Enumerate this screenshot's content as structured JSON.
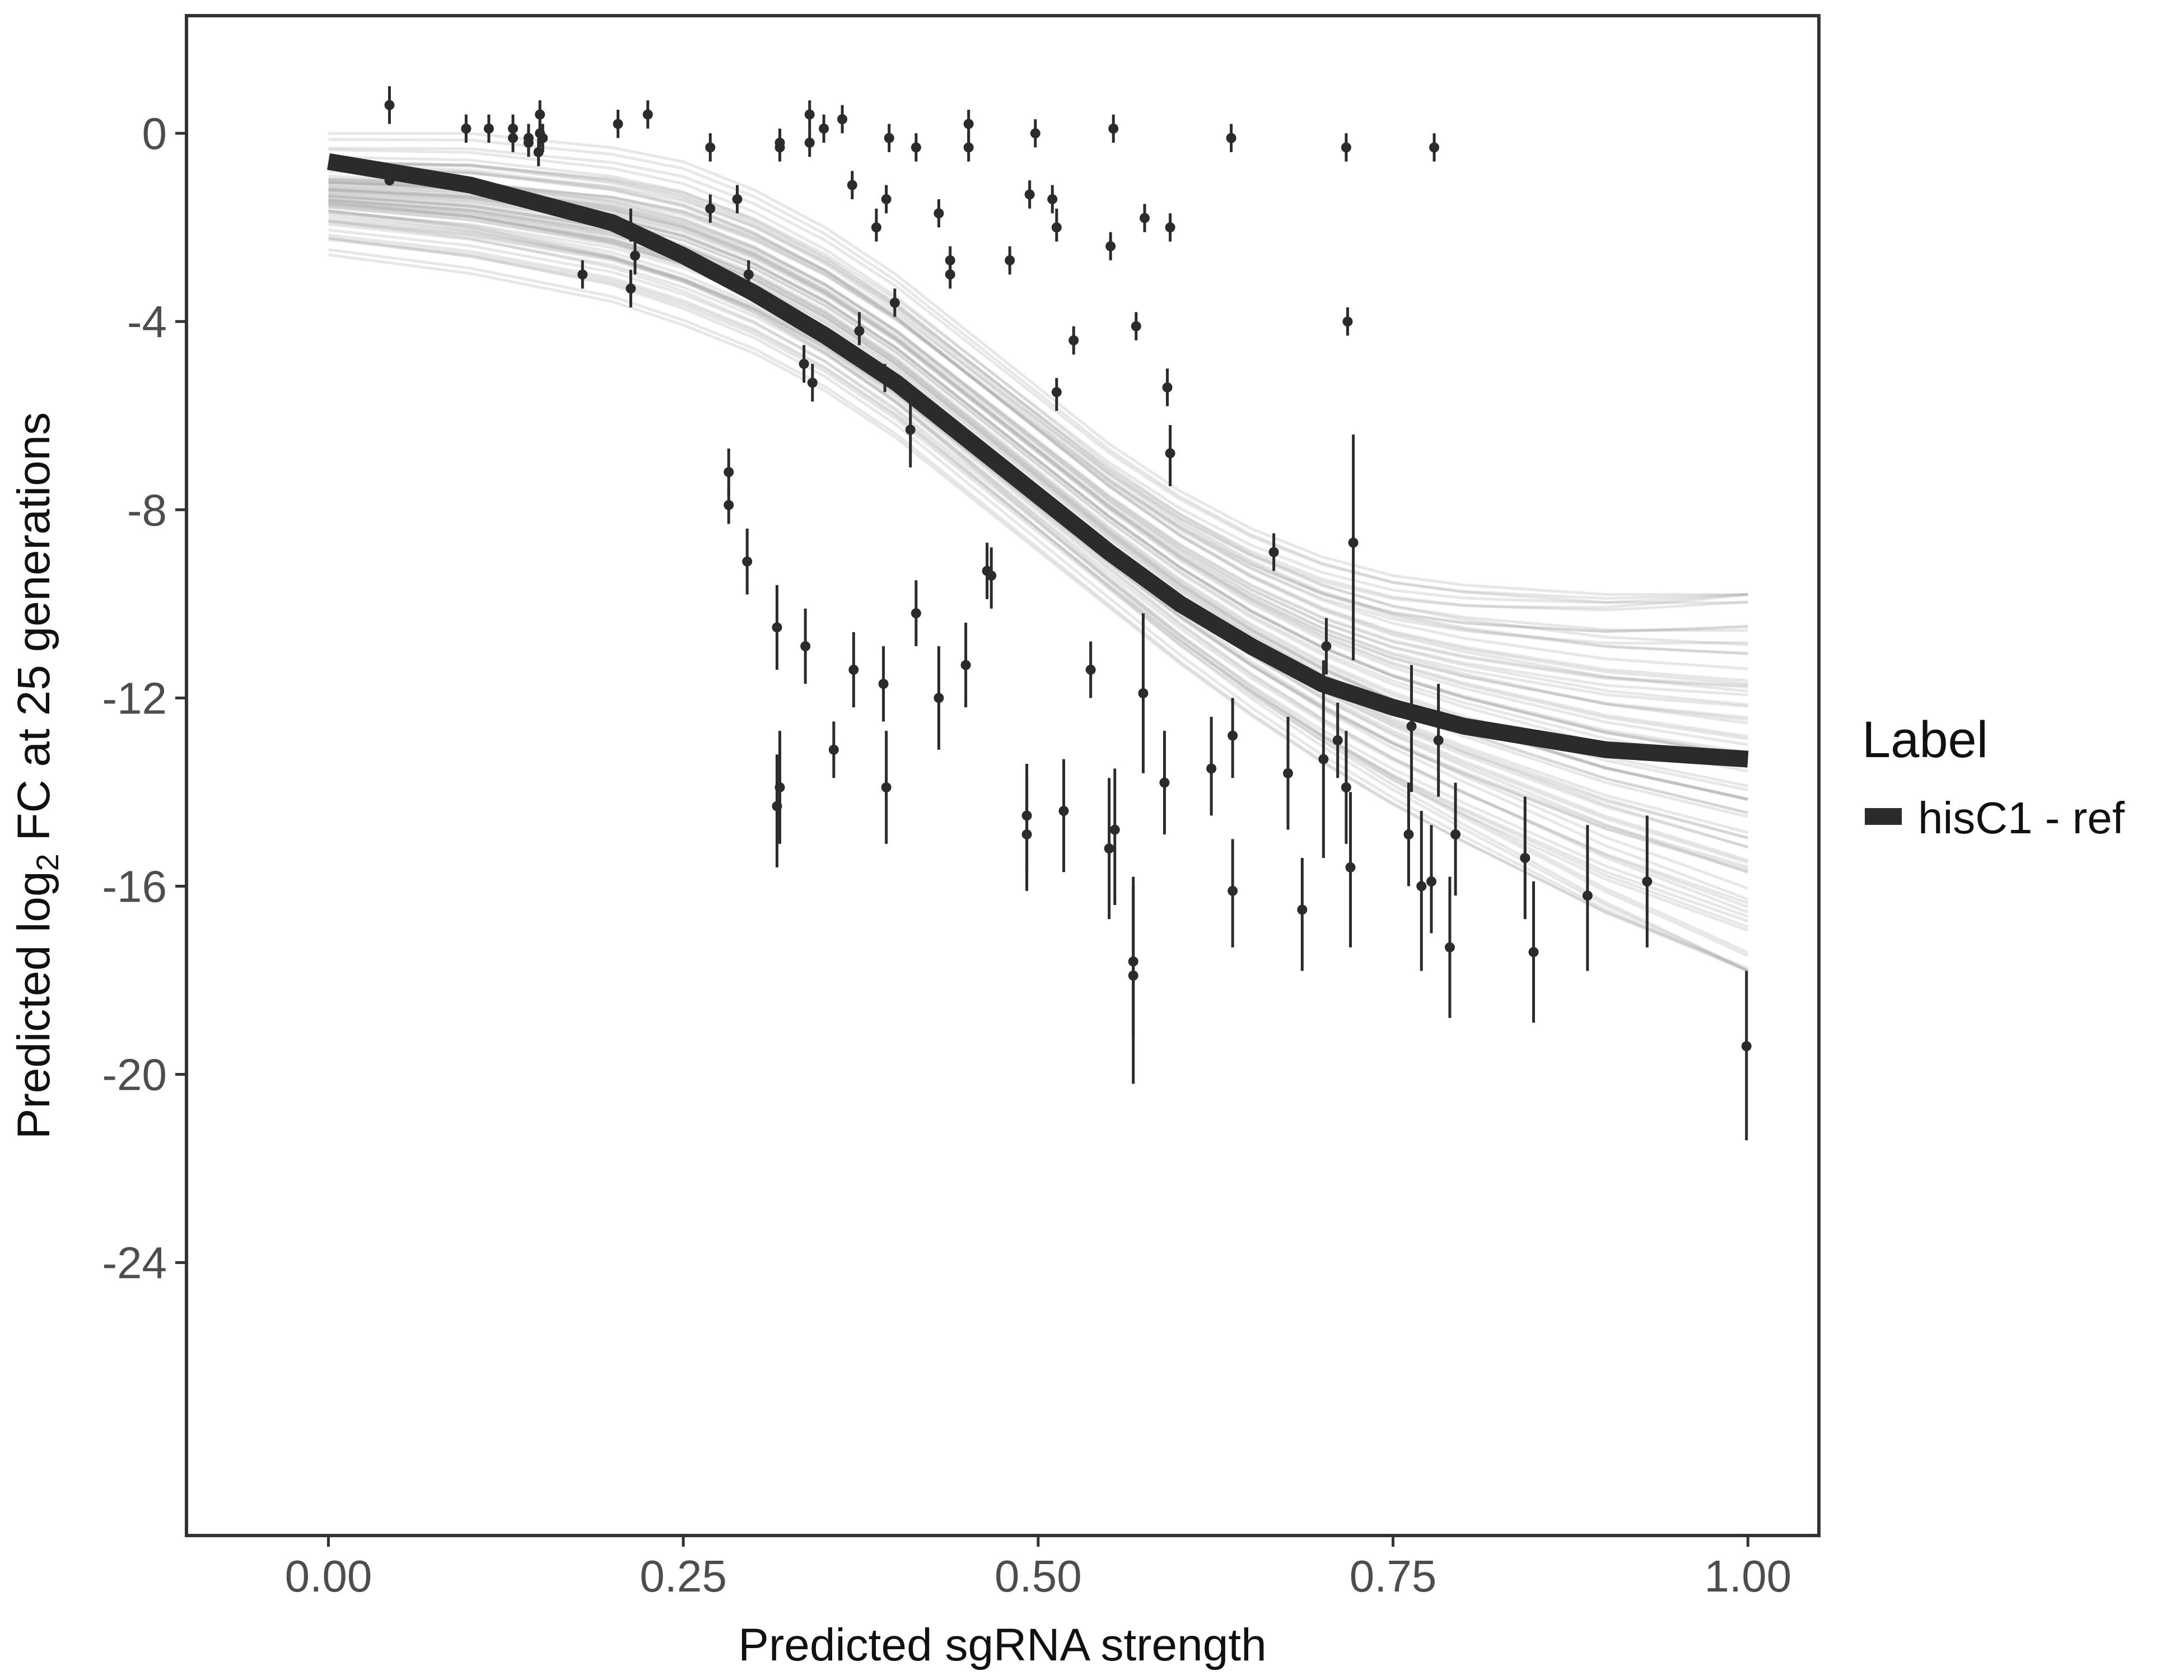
{
  "chart_data": {
    "type": "scatter",
    "title": "",
    "xlabel": "Predicted sgRNA strength",
    "ylabel_parts": {
      "pre": "Predicted  log",
      "sub": "2",
      "post": " FC at 25 generations"
    },
    "xlim": [
      -0.1,
      1.05
    ],
    "ylim": [
      -29.8,
      2.5
    ],
    "x_ticks": [
      0,
      0.25,
      0.5,
      0.75,
      1
    ],
    "x_tick_labels": [
      "0.00",
      "0.25",
      "0.50",
      "0.75",
      "1.00"
    ],
    "y_ticks": [
      0,
      -4,
      -8,
      -12,
      -16,
      -20,
      -24
    ],
    "y_tick_labels": [
      "0",
      "-4",
      "-8",
      "-12",
      "-16",
      "-20",
      "-24"
    ],
    "grid": false,
    "legend": {
      "title": "Label",
      "position": "right",
      "entries": [
        {
          "label": "hisC1 - ref",
          "color": "#2b2b2b"
        }
      ]
    },
    "colors": {
      "fit_line": "#2b2b2b",
      "posterior_draws": "#a8a8a8",
      "points": "#2b2b2b",
      "frame": "#333333",
      "tick_text": "#4d4d4d"
    },
    "fit_curve": {
      "description": "mean posterior logistic fit",
      "x": [
        0,
        0.1,
        0.2,
        0.25,
        0.3,
        0.35,
        0.4,
        0.45,
        0.5,
        0.55,
        0.6,
        0.65,
        0.7,
        0.75,
        0.8,
        0.9,
        1.0
      ],
      "y": [
        -0.6,
        -1.1,
        -1.9,
        -2.6,
        -3.4,
        -4.3,
        -5.3,
        -6.5,
        -7.7,
        -8.9,
        -10.0,
        -10.9,
        -11.7,
        -12.2,
        -12.6,
        -13.1,
        -13.3
      ]
    },
    "posterior_band": {
      "x": [
        0,
        0.1,
        0.2,
        0.25,
        0.3,
        0.35,
        0.4,
        0.45,
        0.5,
        0.55,
        0.6,
        0.65,
        0.7,
        0.75,
        0.8,
        0.9,
        1.0
      ],
      "lower": [
        -2.6,
        -3.0,
        -3.6,
        -4.1,
        -4.7,
        -5.5,
        -6.5,
        -7.7,
        -8.9,
        -10.1,
        -11.3,
        -12.4,
        -13.4,
        -14.3,
        -15.1,
        -16.6,
        -17.8
      ],
      "upper": [
        0.0,
        0.0,
        -0.3,
        -0.6,
        -1.2,
        -2.0,
        -3.0,
        -4.2,
        -5.4,
        -6.6,
        -7.6,
        -8.4,
        -9.0,
        -9.4,
        -9.6,
        -9.8,
        -9.8
      ]
    },
    "series": [
      {
        "name": "observed",
        "points": [
          {
            "x": 0.043,
            "y": 0.6,
            "lo": 0.2,
            "hi": 1.0
          },
          {
            "x": 0.043,
            "y": -1.0,
            "lo": -1.1,
            "hi": -0.9
          },
          {
            "x": 0.097,
            "y": 0.1,
            "lo": -0.2,
            "hi": 0.4
          },
          {
            "x": 0.113,
            "y": 0.1,
            "lo": -0.2,
            "hi": 0.4
          },
          {
            "x": 0.13,
            "y": 0.1,
            "lo": -0.2,
            "hi": 0.4
          },
          {
            "x": 0.13,
            "y": -0.1,
            "lo": -0.4,
            "hi": 0.2
          },
          {
            "x": 0.141,
            "y": -0.1,
            "lo": -0.4,
            "hi": 0.2
          },
          {
            "x": 0.141,
            "y": -0.2,
            "lo": -0.5,
            "hi": 0.1
          },
          {
            "x": 0.149,
            "y": 0.4,
            "lo": 0.0,
            "hi": 0.7
          },
          {
            "x": 0.149,
            "y": 0.0,
            "lo": -0.3,
            "hi": 0.3
          },
          {
            "x": 0.151,
            "y": -0.1,
            "lo": -0.4,
            "hi": 0.2
          },
          {
            "x": 0.148,
            "y": -0.4,
            "lo": -0.7,
            "hi": -0.1
          },
          {
            "x": 0.179,
            "y": -3.0,
            "lo": -3.3,
            "hi": -2.7
          },
          {
            "x": 0.204,
            "y": 0.2,
            "lo": -0.1,
            "hi": 0.5
          },
          {
            "x": 0.213,
            "y": -2.0,
            "lo": -2.3,
            "hi": -1.6
          },
          {
            "x": 0.213,
            "y": -3.3,
            "lo": -3.7,
            "hi": -2.9
          },
          {
            "x": 0.216,
            "y": -2.6,
            "lo": -3.0,
            "hi": -2.2
          },
          {
            "x": 0.225,
            "y": 0.4,
            "lo": 0.1,
            "hi": 0.7
          },
          {
            "x": 0.269,
            "y": -0.3,
            "lo": -0.6,
            "hi": 0.0
          },
          {
            "x": 0.269,
            "y": -1.6,
            "lo": -1.9,
            "hi": -1.3
          },
          {
            "x": 0.282,
            "y": -7.2,
            "lo": -7.7,
            "hi": -6.7
          },
          {
            "x": 0.282,
            "y": -7.9,
            "lo": -8.3,
            "hi": -7.5
          },
          {
            "x": 0.288,
            "y": -1.4,
            "lo": -1.7,
            "hi": -1.1
          },
          {
            "x": 0.295,
            "y": -9.1,
            "lo": -9.8,
            "hi": -8.4
          },
          {
            "x": 0.296,
            "y": -3.0,
            "lo": -3.3,
            "hi": -2.7
          },
          {
            "x": 0.316,
            "y": -10.5,
            "lo": -11.4,
            "hi": -9.6
          },
          {
            "x": 0.316,
            "y": -14.3,
            "lo": -15.6,
            "hi": -13.2
          },
          {
            "x": 0.318,
            "y": -13.9,
            "lo": -15.1,
            "hi": -12.7
          },
          {
            "x": 0.318,
            "y": -0.2,
            "lo": -0.5,
            "hi": 0.1
          },
          {
            "x": 0.318,
            "y": -0.3,
            "lo": -0.6,
            "hi": 0.0
          },
          {
            "x": 0.335,
            "y": -4.9,
            "lo": -5.3,
            "hi": -4.5
          },
          {
            "x": 0.336,
            "y": -10.9,
            "lo": -11.7,
            "hi": -10.1
          },
          {
            "x": 0.339,
            "y": 0.4,
            "lo": 0.1,
            "hi": 0.7
          },
          {
            "x": 0.339,
            "y": -0.2,
            "lo": -0.5,
            "hi": 0.1
          },
          {
            "x": 0.341,
            "y": -5.3,
            "lo": -5.7,
            "hi": -4.9
          },
          {
            "x": 0.349,
            "y": 0.1,
            "lo": -0.2,
            "hi": 0.4
          },
          {
            "x": 0.356,
            "y": -13.1,
            "lo": -13.7,
            "hi": -12.5
          },
          {
            "x": 0.362,
            "y": 0.3,
            "lo": 0.0,
            "hi": 0.6
          },
          {
            "x": 0.369,
            "y": -1.1,
            "lo": -1.4,
            "hi": -0.8
          },
          {
            "x": 0.37,
            "y": -11.4,
            "lo": -12.2,
            "hi": -10.6
          },
          {
            "x": 0.374,
            "y": -4.2,
            "lo": -4.5,
            "hi": -3.8
          },
          {
            "x": 0.386,
            "y": -2.0,
            "lo": -2.3,
            "hi": -1.6
          },
          {
            "x": 0.391,
            "y": -11.7,
            "lo": -12.5,
            "hi": -10.9
          },
          {
            "x": 0.392,
            "y": -5.2,
            "lo": -5.5,
            "hi": -4.9
          },
          {
            "x": 0.393,
            "y": -13.9,
            "lo": -15.1,
            "hi": -12.7
          },
          {
            "x": 0.393,
            "y": -1.4,
            "lo": -1.7,
            "hi": -1.1
          },
          {
            "x": 0.395,
            "y": -0.1,
            "lo": -0.4,
            "hi": 0.2
          },
          {
            "x": 0.399,
            "y": -3.6,
            "lo": -3.9,
            "hi": -3.3
          },
          {
            "x": 0.41,
            "y": -6.3,
            "lo": -7.1,
            "hi": -5.6
          },
          {
            "x": 0.414,
            "y": -0.3,
            "lo": -0.6,
            "hi": 0.0
          },
          {
            "x": 0.414,
            "y": -10.2,
            "lo": -10.9,
            "hi": -9.5
          },
          {
            "x": 0.43,
            "y": -12.0,
            "lo": -13.1,
            "hi": -10.9
          },
          {
            "x": 0.43,
            "y": -1.7,
            "lo": -2.0,
            "hi": -1.4
          },
          {
            "x": 0.438,
            "y": -2.7,
            "lo": -3.0,
            "hi": -2.4
          },
          {
            "x": 0.438,
            "y": -3.0,
            "lo": -3.3,
            "hi": -2.7
          },
          {
            "x": 0.449,
            "y": -11.3,
            "lo": -12.2,
            "hi": -10.4
          },
          {
            "x": 0.451,
            "y": 0.2,
            "lo": -0.1,
            "hi": 0.5
          },
          {
            "x": 0.451,
            "y": -0.3,
            "lo": -0.6,
            "hi": 0.0
          },
          {
            "x": 0.464,
            "y": -9.3,
            "lo": -9.9,
            "hi": -8.7
          },
          {
            "x": 0.467,
            "y": -9.4,
            "lo": -10.1,
            "hi": -8.8
          },
          {
            "x": 0.48,
            "y": -2.7,
            "lo": -3.0,
            "hi": -2.4
          },
          {
            "x": 0.492,
            "y": -14.9,
            "lo": -16.1,
            "hi": -13.7
          },
          {
            "x": 0.492,
            "y": -14.5,
            "lo": -15.7,
            "hi": -13.4
          },
          {
            "x": 0.494,
            "y": -1.3,
            "lo": -1.6,
            "hi": -1.0
          },
          {
            "x": 0.498,
            "y": 0.0,
            "lo": -0.3,
            "hi": 0.3
          },
          {
            "x": 0.51,
            "y": -1.4,
            "lo": -1.7,
            "hi": -1.1
          },
          {
            "x": 0.513,
            "y": -2.0,
            "lo": -2.3,
            "hi": -1.6
          },
          {
            "x": 0.513,
            "y": -5.5,
            "lo": -5.9,
            "hi": -5.2
          },
          {
            "x": 0.518,
            "y": -14.4,
            "lo": -15.7,
            "hi": -13.3
          },
          {
            "x": 0.525,
            "y": -4.4,
            "lo": -4.7,
            "hi": -4.1
          },
          {
            "x": 0.537,
            "y": -11.4,
            "lo": -12.0,
            "hi": -10.8
          },
          {
            "x": 0.551,
            "y": -2.4,
            "lo": -2.7,
            "hi": -2.1
          },
          {
            "x": 0.55,
            "y": -15.2,
            "lo": -16.7,
            "hi": -13.7
          },
          {
            "x": 0.553,
            "y": 0.1,
            "lo": -0.2,
            "hi": 0.4
          },
          {
            "x": 0.554,
            "y": -14.8,
            "lo": -16.4,
            "hi": -13.5
          },
          {
            "x": 0.567,
            "y": -17.6,
            "lo": -19.2,
            "hi": -15.8
          },
          {
            "x": 0.567,
            "y": -17.9,
            "lo": -20.2,
            "hi": -16.0
          },
          {
            "x": 0.569,
            "y": -4.1,
            "lo": -4.4,
            "hi": -3.8
          },
          {
            "x": 0.574,
            "y": -11.9,
            "lo": -13.6,
            "hi": -10.2
          },
          {
            "x": 0.575,
            "y": -1.8,
            "lo": -2.1,
            "hi": -1.5
          },
          {
            "x": 0.589,
            "y": -13.8,
            "lo": -14.9,
            "hi": -12.7
          },
          {
            "x": 0.591,
            "y": -5.4,
            "lo": -5.8,
            "hi": -5.0
          },
          {
            "x": 0.593,
            "y": -6.8,
            "lo": -7.5,
            "hi": -6.2
          },
          {
            "x": 0.593,
            "y": -2.0,
            "lo": -2.3,
            "hi": -1.7
          },
          {
            "x": 0.622,
            "y": -13.5,
            "lo": -14.5,
            "hi": -12.4
          },
          {
            "x": 0.636,
            "y": -0.1,
            "lo": -0.4,
            "hi": 0.2
          },
          {
            "x": 0.637,
            "y": -12.8,
            "lo": -13.7,
            "hi": -12.0
          },
          {
            "x": 0.637,
            "y": -16.1,
            "lo": -17.3,
            "hi": -15.0
          },
          {
            "x": 0.666,
            "y": -8.9,
            "lo": -9.3,
            "hi": -8.5
          },
          {
            "x": 0.676,
            "y": -13.6,
            "lo": -14.8,
            "hi": -12.4
          },
          {
            "x": 0.686,
            "y": -16.5,
            "lo": -17.8,
            "hi": -15.4
          },
          {
            "x": 0.701,
            "y": -13.3,
            "lo": -15.4,
            "hi": -11.2
          },
          {
            "x": 0.703,
            "y": -10.9,
            "lo": -11.5,
            "hi": -10.3
          },
          {
            "x": 0.711,
            "y": -12.9,
            "lo": -13.7,
            "hi": -12.1
          },
          {
            "x": 0.717,
            "y": -13.9,
            "lo": -15.1,
            "hi": -12.7
          },
          {
            "x": 0.717,
            "y": -0.3,
            "lo": -0.6,
            "hi": 0.0
          },
          {
            "x": 0.718,
            "y": -4.0,
            "lo": -4.3,
            "hi": -3.7
          },
          {
            "x": 0.72,
            "y": -15.6,
            "lo": -17.3,
            "hi": -14.0
          },
          {
            "x": 0.722,
            "y": -8.7,
            "lo": -11.2,
            "hi": -6.4
          },
          {
            "x": 0.761,
            "y": -14.9,
            "lo": -16.0,
            "hi": -13.8
          },
          {
            "x": 0.763,
            "y": -12.6,
            "lo": -14.0,
            "hi": -11.3
          },
          {
            "x": 0.77,
            "y": -16.0,
            "lo": -17.8,
            "hi": -14.4
          },
          {
            "x": 0.777,
            "y": -15.9,
            "lo": -17.0,
            "hi": -14.7
          },
          {
            "x": 0.779,
            "y": -0.3,
            "lo": -0.6,
            "hi": 0.0
          },
          {
            "x": 0.782,
            "y": -12.9,
            "lo": -14.1,
            "hi": -11.7
          },
          {
            "x": 0.79,
            "y": -17.3,
            "lo": -18.8,
            "hi": -15.8
          },
          {
            "x": 0.794,
            "y": -14.9,
            "lo": -16.2,
            "hi": -13.8
          },
          {
            "x": 0.843,
            "y": -15.4,
            "lo": -16.7,
            "hi": -14.1
          },
          {
            "x": 0.849,
            "y": -17.4,
            "lo": -18.9,
            "hi": -15.9
          },
          {
            "x": 0.887,
            "y": -16.2,
            "lo": -17.8,
            "hi": -14.7
          },
          {
            "x": 0.929,
            "y": -15.9,
            "lo": -17.3,
            "hi": -14.5
          },
          {
            "x": 0.999,
            "y": -19.4,
            "lo": -21.4,
            "hi": -17.8
          }
        ]
      }
    ]
  }
}
